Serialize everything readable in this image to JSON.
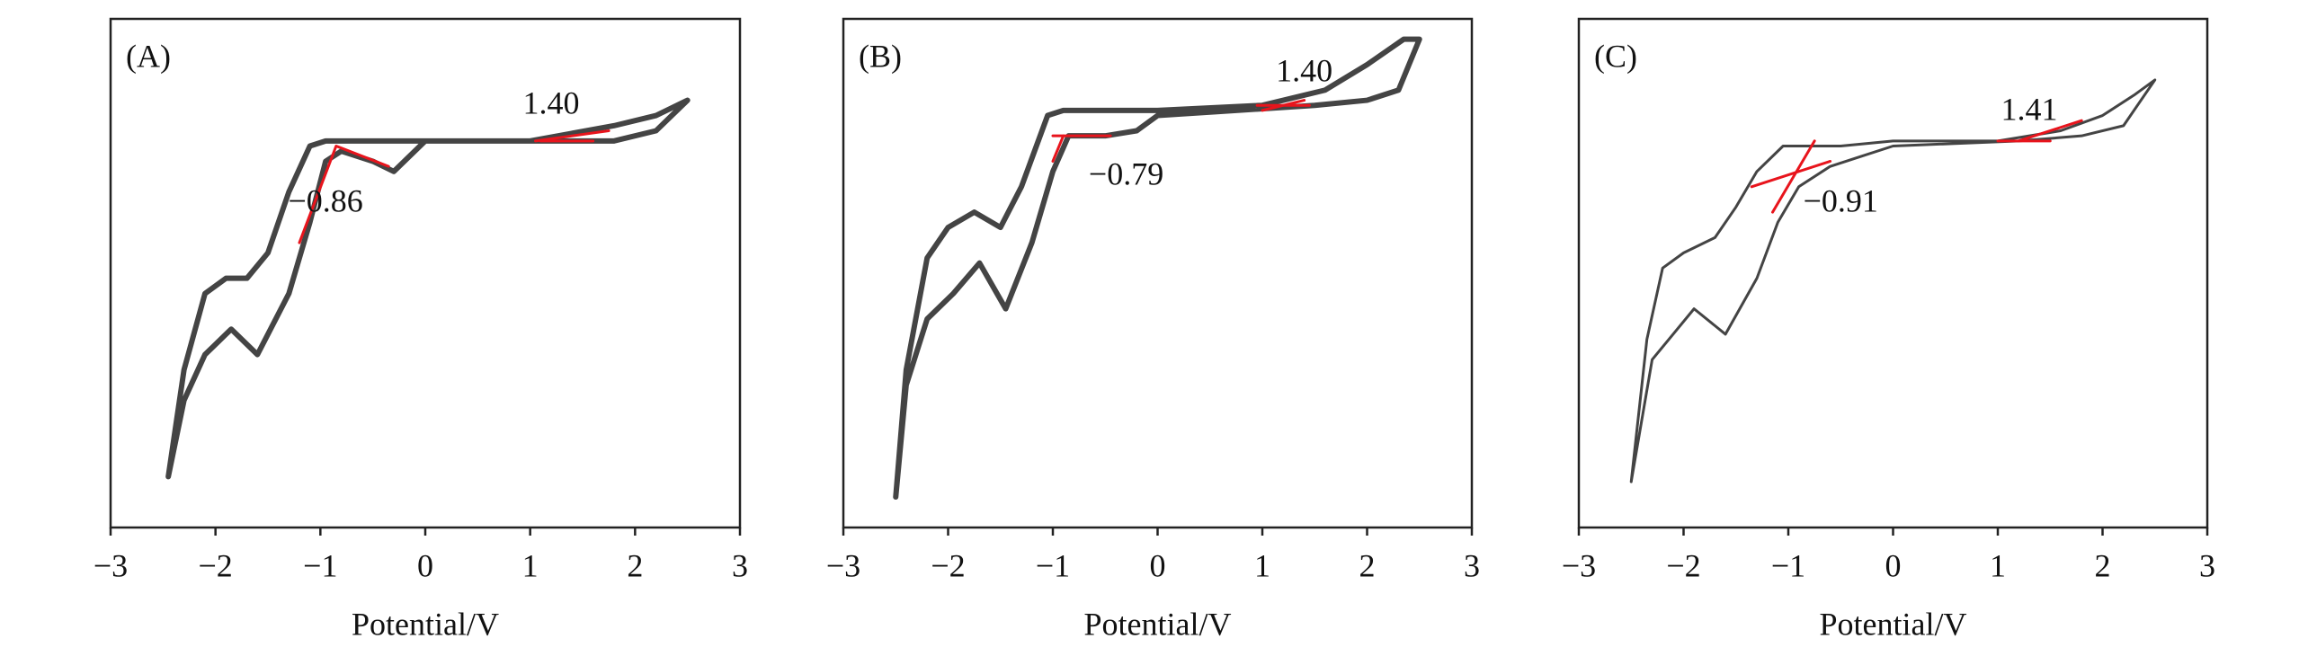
{
  "chart_data": [
    {
      "type": "line",
      "panel_label": "(A)",
      "xlabel": "Potential/V",
      "xlim": [
        -3,
        3
      ],
      "ylim": [
        0,
        1
      ],
      "xticks": [
        {
          "value": -3,
          "label": "−3"
        },
        {
          "value": -2,
          "label": "−2"
        },
        {
          "value": -1,
          "label": "−1"
        },
        0,
        1,
        2,
        3
      ],
      "annotations": [
        "1.40",
        "−0.86"
      ],
      "series": [
        {
          "color": "#444444",
          "x": [
            -2.45,
            -2.3,
            -2.1,
            -1.9,
            -1.7,
            -1.5,
            -1.3,
            -1.1,
            -0.95,
            -0.5,
            0,
            1,
            1.8,
            2.2,
            2.5,
            2.2,
            1.8,
            1.2,
            0,
            -0.3,
            -0.5,
            -0.8,
            -0.95,
            -1.1,
            -1.3,
            -1.6,
            -1.85,
            -2.1,
            -2.3,
            -2.45
          ],
          "values": [
            0.1,
            0.31,
            0.46,
            0.49,
            0.49,
            0.54,
            0.66,
            0.75,
            0.76,
            0.76,
            0.76,
            0.76,
            0.79,
            0.81,
            0.84,
            0.78,
            0.76,
            0.76,
            0.76,
            0.7,
            0.72,
            0.74,
            0.72,
            0.6,
            0.46,
            0.34,
            0.39,
            0.34,
            0.25,
            0.1
          ]
        },
        {
          "color": "#e8141c",
          "x": [
            -1.2,
            -0.85,
            -0.35
          ],
          "values": [
            0.56,
            0.75,
            0.71
          ]
        },
        {
          "color": "#e8141c",
          "x": [
            1.05,
            1.75
          ],
          "values": [
            0.76,
            0.78
          ]
        },
        {
          "color": "#e8141c",
          "x": [
            1.1,
            1.6
          ],
          "values": [
            0.76,
            0.76
          ]
        }
      ]
    },
    {
      "type": "line",
      "panel_label": "(B)",
      "xlabel": "Potential/V",
      "xlim": [
        -3,
        3
      ],
      "ylim": [
        0,
        1
      ],
      "xticks": [
        {
          "value": -3,
          "label": "−3"
        },
        {
          "value": -2,
          "label": "−2"
        },
        {
          "value": -1,
          "label": "−1"
        },
        0,
        1,
        2,
        3
      ],
      "annotations": [
        "1.40",
        "−0.79"
      ],
      "series": [
        {
          "color": "#444444",
          "x": [
            -2.5,
            -2.4,
            -2.2,
            -2.0,
            -1.75,
            -1.5,
            -1.3,
            -1.05,
            -0.9,
            0,
            1,
            1.6,
            2.0,
            2.35,
            2.5,
            2.3,
            2.0,
            1.5,
            0,
            -0.2,
            -0.5,
            -0.85,
            -1.0,
            -1.2,
            -1.45,
            -1.7,
            -1.95,
            -2.2,
            -2.4,
            -2.5
          ],
          "values": [
            0.06,
            0.31,
            0.53,
            0.59,
            0.62,
            0.59,
            0.67,
            0.81,
            0.82,
            0.82,
            0.83,
            0.86,
            0.91,
            0.96,
            0.96,
            0.86,
            0.84,
            0.83,
            0.81,
            0.78,
            0.77,
            0.77,
            0.7,
            0.56,
            0.43,
            0.52,
            0.46,
            0.41,
            0.28,
            0.06
          ]
        },
        {
          "color": "#e8141c",
          "x": [
            -1.0,
            -0.9
          ],
          "values": [
            0.72,
            0.77
          ]
        },
        {
          "color": "#e8141c",
          "x": [
            -1.0,
            -0.45
          ],
          "values": [
            0.77,
            0.77
          ]
        },
        {
          "color": "#e8141c",
          "x": [
            0.95,
            1.45
          ],
          "values": [
            0.83,
            0.83
          ]
        },
        {
          "color": "#e8141c",
          "x": [
            1.0,
            1.4
          ],
          "values": [
            0.82,
            0.84
          ]
        }
      ]
    },
    {
      "type": "line",
      "panel_label": "(C)",
      "xlabel": "Potential/V",
      "xlim": [
        -3,
        3
      ],
      "ylim": [
        0,
        1
      ],
      "xticks": [
        {
          "value": -3,
          "label": "−3"
        },
        {
          "value": -2,
          "label": "−2"
        },
        {
          "value": -1,
          "label": "−1"
        },
        0,
        1,
        2,
        3
      ],
      "annotations": [
        "1.41",
        "−0.91"
      ],
      "series": [
        {
          "color": "#444444",
          "x": [
            -2.5,
            -2.35,
            -2.2,
            -2.0,
            -1.7,
            -1.5,
            -1.3,
            -1.05,
            -0.5,
            0,
            1,
            1.6,
            2.0,
            2.3,
            2.5,
            2.2,
            1.8,
            1.2,
            0,
            -0.3,
            -0.6,
            -0.9,
            -1.1,
            -1.3,
            -1.6,
            -1.9,
            -2.1,
            -2.3,
            -2.5
          ],
          "values": [
            0.09,
            0.37,
            0.51,
            0.54,
            0.57,
            0.63,
            0.7,
            0.75,
            0.75,
            0.76,
            0.76,
            0.78,
            0.81,
            0.85,
            0.88,
            0.79,
            0.77,
            0.76,
            0.75,
            0.73,
            0.71,
            0.67,
            0.6,
            0.49,
            0.38,
            0.43,
            0.38,
            0.33,
            0.09
          ]
        },
        {
          "color": "#e8141c",
          "x": [
            -1.15,
            -0.75
          ],
          "values": [
            0.62,
            0.76
          ]
        },
        {
          "color": "#e8141c",
          "x": [
            -1.35,
            -0.6
          ],
          "values": [
            0.67,
            0.72
          ]
        },
        {
          "color": "#e8141c",
          "x": [
            1.0,
            1.5
          ],
          "values": [
            0.76,
            0.76
          ]
        },
        {
          "color": "#e8141c",
          "x": [
            1.2,
            1.8
          ],
          "values": [
            0.76,
            0.8
          ]
        }
      ]
    }
  ]
}
